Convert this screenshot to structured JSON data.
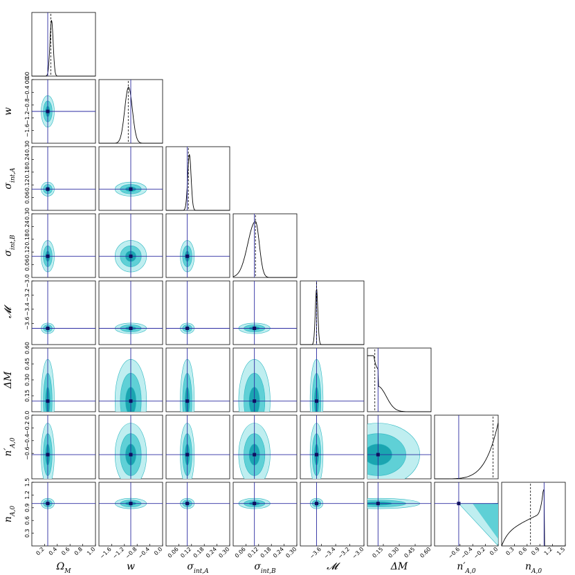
{
  "chart_data": {
    "type": "corner",
    "parameters": [
      {
        "key": "omega_m",
        "label": "ΩM",
        "label_main": "Ω",
        "label_sub": "M",
        "range": [
          0.0,
          1.0
        ],
        "ticks": [
          "0.2",
          "0.4",
          "0.6",
          "0.8",
          "1.0"
        ],
        "y_ticks": [],
        "truth": 0.25,
        "best": 0.25,
        "posterior": {
          "kind": "gauss",
          "mean": 0.31,
          "sigma": 0.025,
          "dashed": 0.3
        }
      },
      {
        "key": "w",
        "label": "w",
        "label_main": "w",
        "label_sub": "",
        "range": [
          -2.0,
          0.0
        ],
        "ticks": [
          "−1.6",
          "−1.2",
          "−0.8",
          "−0.4",
          "0.0"
        ],
        "y_ticks": [
          "−1.6",
          "−1.2",
          "−0.8",
          "−0.4",
          "0.0"
        ],
        "truth": -1.0,
        "best": -1.0,
        "posterior": {
          "kind": "gauss",
          "mean": -1.07,
          "sigma": 0.12,
          "dashed": -1.08
        }
      },
      {
        "key": "sigma_int_a",
        "label": "σint,A",
        "label_main": "σ",
        "label_sub": "int,A",
        "range": [
          0.0,
          0.3
        ],
        "ticks": [
          "0.06",
          "0.12",
          "0.18",
          "0.24",
          "0.30"
        ],
        "y_ticks": [
          "0.06",
          "0.12",
          "0.18",
          "0.24",
          "0.30"
        ],
        "truth": 0.1,
        "best": 0.1,
        "posterior": {
          "kind": "gauss",
          "mean": 0.11,
          "sigma": 0.008,
          "dashed": 0.105
        }
      },
      {
        "key": "sigma_int_b",
        "label": "σint,B",
        "label_main": "σ",
        "label_sub": "int,B",
        "range": [
          0.0,
          0.3
        ],
        "ticks": [
          "0.06",
          "0.12",
          "0.18",
          "0.24",
          "0.30"
        ],
        "y_ticks": [
          "0.06",
          "0.12",
          "0.18",
          "0.24",
          "0.30"
        ],
        "truth": 0.1,
        "best": 0.1,
        "posterior": {
          "kind": "skew",
          "mean": 0.105,
          "sigma": 0.018,
          "dashed": 0.105
        }
      },
      {
        "key": "m_cal",
        "label": "𝓜",
        "label_main": "𝓜",
        "label_sub": "",
        "range": [
          -3.9,
          -3.0
        ],
        "ticks": [
          "−3.6",
          "−3.4",
          "−3.2",
          "−3.0"
        ],
        "y_ticks": [
          "−3.6",
          "−3.4",
          "−3.2",
          "−3.0"
        ],
        "truth": -3.67,
        "best": -3.67,
        "posterior": {
          "kind": "gauss",
          "mean": -3.67,
          "sigma": 0.018,
          "dashed": -3.67
        }
      },
      {
        "key": "delta_m",
        "label": "ΔM",
        "label_main": "ΔM",
        "label_sub": "",
        "range": [
          0.0,
          0.6
        ],
        "ticks": [
          "0.15",
          "0.30",
          "0.45",
          "0.60"
        ],
        "y_ticks": [
          "0.15",
          "0.30",
          "0.45",
          "0.60"
        ],
        "truth": 0.1,
        "best": 0.1,
        "posterior": {
          "kind": "decay",
          "mean": 0.0,
          "sigma": 0.12,
          "dashed": 0.07
        }
      },
      {
        "key": "n_prime_a0",
        "label": "n′A,0",
        "label_main": "n′",
        "label_sub": "A,0",
        "range": [
          -1.0,
          0.0
        ],
        "ticks": [
          "−0.6",
          "−0.4",
          "−0.2",
          "0.0"
        ],
        "y_ticks": [
          "−0.6",
          "−0.4",
          "−0.2",
          "0.0"
        ],
        "truth": -0.62,
        "best": -0.62,
        "posterior": {
          "kind": "rise",
          "mean": 0.0,
          "sigma": 0.12,
          "dashed": -0.08
        }
      },
      {
        "key": "n_a0",
        "label": "nA,0",
        "label_main": "n",
        "label_sub": "A,0",
        "range": [
          0.0,
          1.5
        ],
        "ticks": [
          "0.3",
          "0.6",
          "0.9",
          "1.2",
          "1.5"
        ],
        "y_ticks": [
          "0.3",
          "0.6",
          "0.9",
          "1.2",
          "1.5"
        ],
        "truth": 1.0,
        "best": 1.0,
        "posterior": {
          "kind": "cdf",
          "mean": 1.0,
          "sigma": 0.02,
          "dashed": 0.68
        }
      }
    ],
    "diag_y_ticks": [
      "0.0"
    ],
    "colors": {
      "contour_outer": "#bfeef0",
      "contour_mid": "#5fd0d6",
      "contour_inner": "#1aa5b0",
      "contour_line": "#29b6c0",
      "truth_line": "#2a2aa0",
      "best_marker": "#101060",
      "histogram": "#000000"
    }
  }
}
